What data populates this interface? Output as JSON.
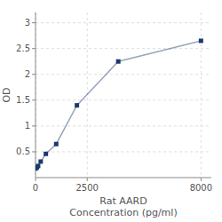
{
  "chart_data": {
    "type": "line",
    "x_label": "Rat AARD\nConcentration (pg/ml)",
    "y_label": "OD",
    "x": [
      0,
      62.5,
      125,
      250,
      500,
      1000,
      2000,
      4000,
      8000
    ],
    "series": [
      {
        "values": [
          0.175,
          0.195,
          0.225,
          0.31,
          0.46,
          0.65,
          1.4,
          2.25,
          2.65
        ],
        "color": "#1a3a6b",
        "marker": "square"
      }
    ],
    "xlim": [
      0,
      8500
    ],
    "xticks": [
      0,
      2500,
      8000
    ],
    "ylim": [
      0,
      3.2
    ],
    "yticks": [
      0.5,
      1.0,
      1.5,
      2.0,
      2.5,
      3.0
    ],
    "grid": true
  }
}
